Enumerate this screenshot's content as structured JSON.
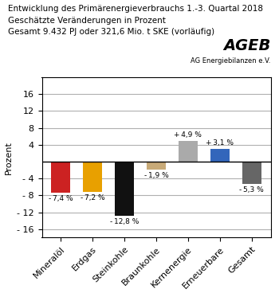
{
  "chart_data": {
    "type": "bar",
    "title": "Entwicklung des Primärenergieverbrauchs 1.-3. Quartal 2018",
    "subtitle": [
      "Geschätzte Veränderungen in Prozent",
      "Gesamt 9.432 PJ oder 321,6 Mio. t SKE (vorläufig)"
    ],
    "annotations": [
      "AGEB",
      "AG Energiebilanzen e.V."
    ],
    "y_label": "Prozent",
    "categories": [
      "Mineralöl",
      "Erdgas",
      "Steinkohle",
      "Braunkohle",
      "Kernenergie",
      "Erneuerbare",
      "Gesamt"
    ],
    "values": [
      -7.4,
      -7.2,
      -12.8,
      -1.9,
      4.9,
      3.1,
      -5.3
    ],
    "value_labels": [
      "- 7,4 %",
      "- 7,2 %",
      "- 12,8 %",
      "- 1,9 %",
      "+ 4,9 %",
      "+ 3,1 %",
      "- 5,3 %"
    ],
    "data_labels": true,
    "colors": [
      "#cc2222",
      "#e8a000",
      "#111111",
      "#c8aa78",
      "#aaaaaa",
      "#3366bb",
      "#666666"
    ],
    "ylim": [
      -18,
      20
    ],
    "yticks": [
      {
        "value": -16,
        "label": "- 16"
      },
      {
        "value": -12,
        "label": "- 12"
      },
      {
        "value": -8,
        "label": "- 8"
      },
      {
        "value": -4,
        "label": "- 4"
      },
      4,
      8,
      12,
      16
    ],
    "grid": true
  }
}
